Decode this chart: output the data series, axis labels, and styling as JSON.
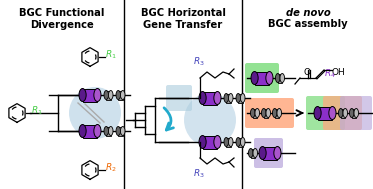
{
  "title_left": "BGC Functional\nDivergence",
  "title_mid": "BGC Horizontal\nGene Transfer",
  "title_right_italic": "de novo",
  "title_right_plain": "BGC assembly",
  "purple": "#8B2FC9",
  "dark_purple": "#5A1A8A",
  "light_purple": "#AA55CC",
  "gray_gene": "#999999",
  "dark_gray": "#666666",
  "light_gray_cap": "#BBBBBB",
  "green_r": "#44CC44",
  "orange_r": "#EE6600",
  "blue_r": "#4444BB",
  "purple_r": "#8B2FC9",
  "cyan_arrow": "#22AACC",
  "bg_blue_ellipse": "#C0D8E8",
  "bg_green": "#80DD80",
  "bg_orange": "#FFAA80",
  "bg_purple_light": "#BBAADD",
  "bg_blue_rect": "#AACCDD",
  "fig_width": 3.73,
  "fig_height": 1.89
}
